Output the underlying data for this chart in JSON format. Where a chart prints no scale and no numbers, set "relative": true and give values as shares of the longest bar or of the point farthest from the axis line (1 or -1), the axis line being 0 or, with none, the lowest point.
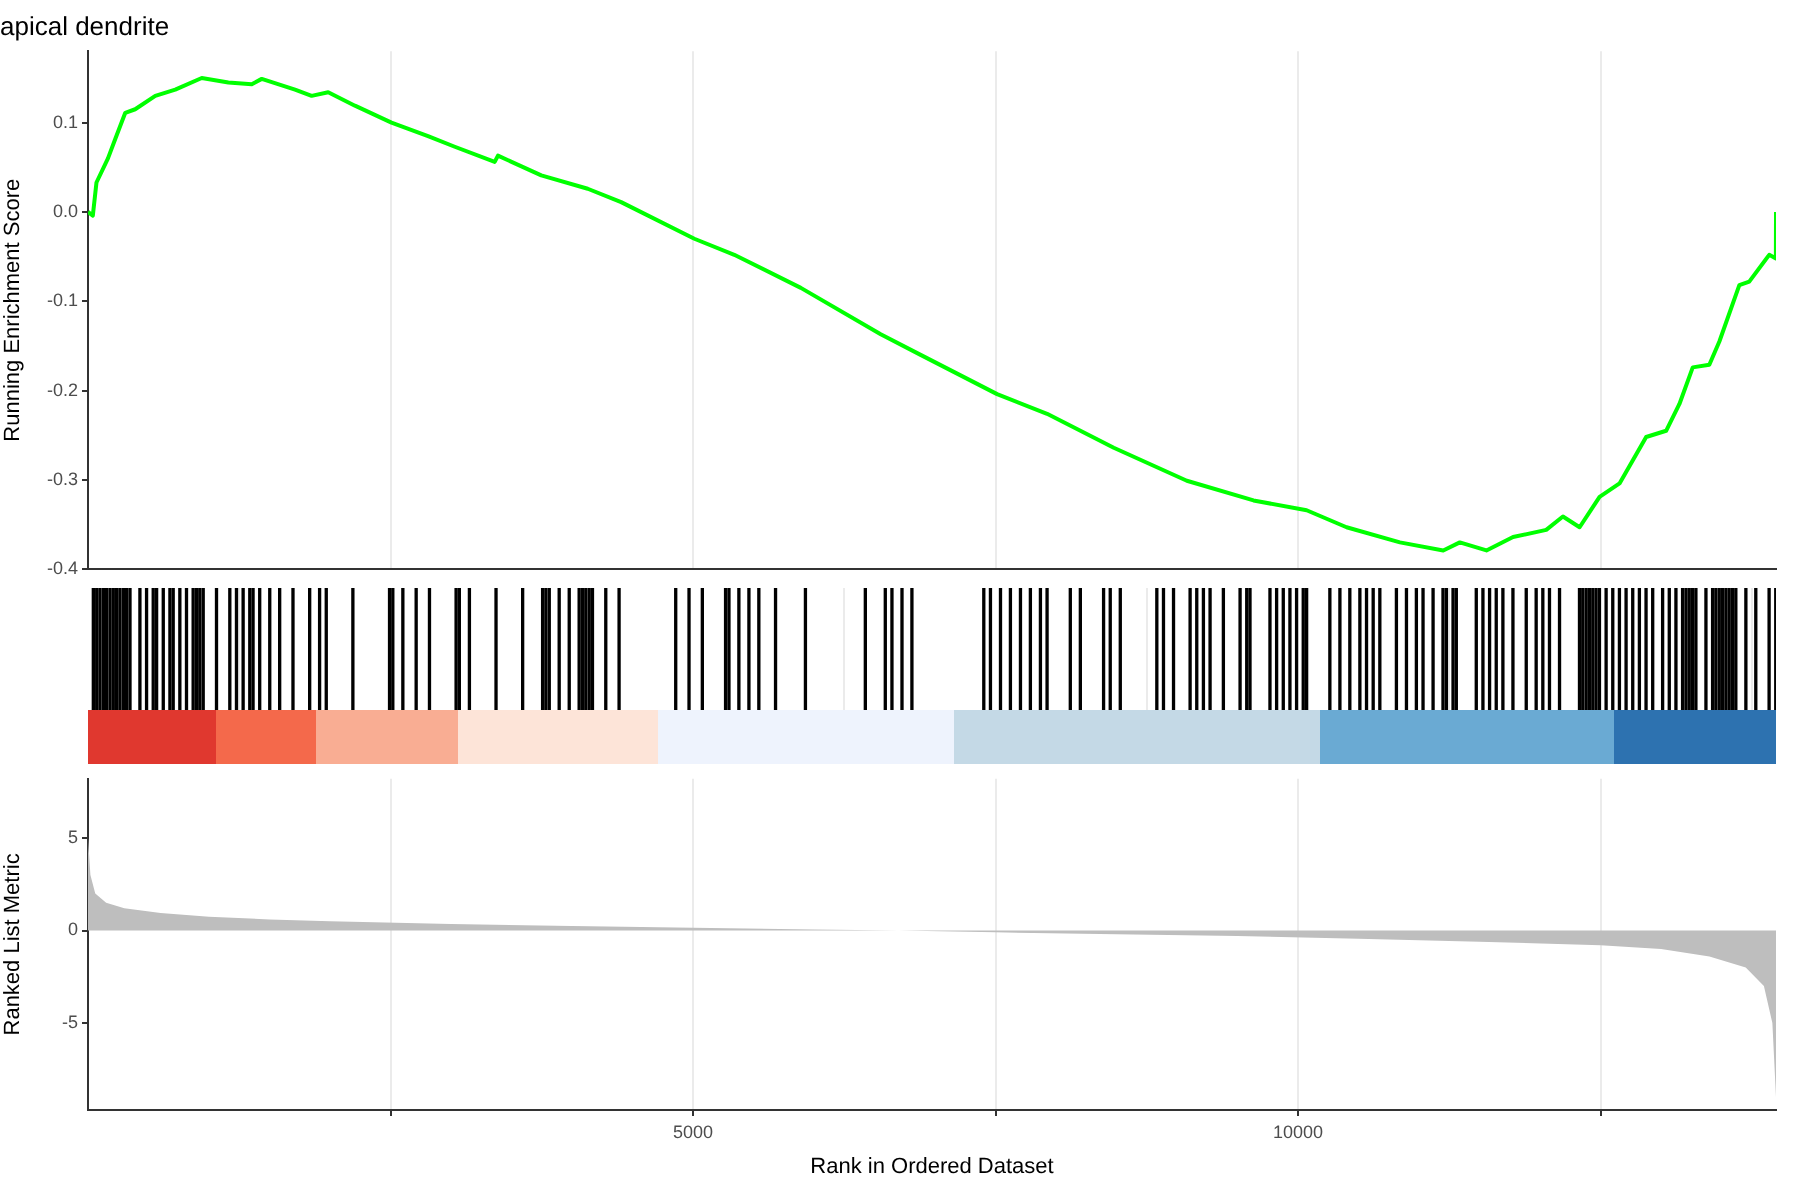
{
  "chart_data": [
    {
      "type": "line",
      "title": "apical dendrite",
      "ylabel": "Running Enrichment Score",
      "xlim": [
        0,
        13950
      ],
      "xticks": [
        {
          "value": 2500,
          "label": null
        },
        {
          "value": 5000,
          "label": null
        },
        {
          "value": 7500,
          "label": null
        },
        {
          "value": 10000,
          "label": null
        },
        {
          "value": 12500,
          "label": null
        }
      ],
      "ylim": [
        -0.4,
        0.18
      ],
      "yticks": [
        {
          "value": 0.1,
          "label": "0.1"
        },
        {
          "value": 0,
          "label": "0.0"
        },
        -0.1,
        -0.2,
        -0.3,
        -0.4
      ],
      "grid": "x",
      "tick_labels": "y",
      "marker": "none",
      "series": [
        {
          "color": "#00ff00",
          "x": [
            0,
            40,
            70,
            165,
            226,
            308,
            390,
            556,
            721,
            940,
            1160,
            1353,
            1436,
            1711,
            1848,
            1985,
            2206,
            2508,
            2810,
            3031,
            3361,
            3388,
            3746,
            4130,
            4406,
            5011,
            5341,
            5891,
            6551,
            6881,
            7513,
            7926,
            8477,
            9081,
            9632,
            10071,
            10401,
            10842,
            11200,
            11337,
            11557,
            11777,
            12051,
            12189,
            12327,
            12492,
            12657,
            12877,
            13042,
            13152,
            13262,
            13399,
            13482,
            13647,
            13729,
            13894,
            13949,
            13950
          ],
          "values": [
            0,
            -0.004,
            0.033,
            0.06,
            0.082,
            0.111,
            0.115,
            0.13,
            0.137,
            0.15,
            0.145,
            0.143,
            0.149,
            0.137,
            0.13,
            0.134,
            0.119,
            0.1,
            0.085,
            0.073,
            0.056,
            0.063,
            0.041,
            0.026,
            0.011,
            -0.03,
            -0.048,
            -0.085,
            -0.137,
            -0.16,
            -0.204,
            -0.226,
            -0.264,
            -0.301,
            -0.323,
            -0.334,
            -0.353,
            -0.37,
            -0.379,
            -0.37,
            -0.379,
            -0.364,
            -0.356,
            -0.341,
            -0.353,
            -0.319,
            -0.304,
            -0.252,
            -0.245,
            -0.215,
            -0.174,
            -0.171,
            -0.145,
            -0.082,
            -0.078,
            -0.048,
            -0.052,
            0
          ]
        }
      ]
    },
    {
      "type": "bar",
      "relative": true,
      "xlim": [
        0,
        13950
      ],
      "xticks": [
        {
          "value": 2500,
          "label": null
        },
        {
          "value": 5000,
          "label": null
        },
        {
          "value": 7500,
          "label": null
        },
        {
          "value": 10000,
          "label": null
        },
        {
          "value": 12500,
          "label": null
        }
      ],
      "grid": "x",
      "tick_labels": false,
      "series": [
        {
          "color": "#000000",
          "x": [
            44,
            72,
            99,
            127,
            154,
            182,
            209,
            237,
            264,
            292,
            319,
            347,
            429,
            484,
            539,
            567,
            622,
            677,
            704,
            759,
            814,
            869,
            897,
            924,
            952,
            1062,
            1172,
            1227,
            1282,
            1337,
            1364,
            1419,
            1502,
            1584,
            1694,
            1832,
            1914,
            1969,
            2189,
            2492,
            2519,
            2602,
            2712,
            2822,
            3042,
            3069,
            3152,
            3372,
            3592,
            3757,
            3784,
            3812,
            3894,
            3977,
            4059,
            4087,
            4114,
            4142,
            4169,
            4279,
            4389,
            4857,
            4967,
            5077,
            5269,
            5297,
            5379,
            5462,
            5544,
            5682,
            5929,
            6424,
            6589,
            6644,
            6727,
            6809,
            7403,
            7458,
            7541,
            7623,
            7706,
            7788,
            7871,
            7926,
            8118,
            8201,
            8393,
            8448,
            8531,
            8833,
            8888,
            8971,
            9108,
            9163,
            9218,
            9273,
            9383,
            9521,
            9576,
            9603,
            9768,
            9823,
            9878,
            9933,
            9988,
            10043,
            10071,
            10263,
            10346,
            10428,
            10511,
            10566,
            10621,
            10676,
            10813,
            10896,
            10978,
            11033,
            11116,
            11198,
            11226,
            11281,
            11308,
            11473,
            11528,
            11583,
            11638,
            11693,
            11776,
            11886,
            11968,
            12023,
            12078,
            12161,
            12326,
            12353,
            12381,
            12408,
            12436,
            12463,
            12491,
            12546,
            12601,
            12656,
            12711,
            12766,
            12821,
            12876,
            12931,
            13013,
            13068,
            13123,
            13178,
            13206,
            13233,
            13261,
            13288,
            13371,
            13426,
            13453,
            13481,
            13508,
            13536,
            13563,
            13591,
            13618,
            13701,
            13783,
            13893,
            13948
          ],
          "values": [
            1,
            1,
            1,
            1,
            1,
            1,
            1,
            1,
            1,
            1,
            1,
            1,
            1,
            1,
            1,
            1,
            1,
            1,
            1,
            1,
            1,
            1,
            1,
            1,
            1,
            1,
            1,
            1,
            1,
            1,
            1,
            1,
            1,
            1,
            1,
            1,
            1,
            1,
            1,
            1,
            1,
            1,
            1,
            1,
            1,
            1,
            1,
            1,
            1,
            1,
            1,
            1,
            1,
            1,
            1,
            1,
            1,
            1,
            1,
            1,
            1,
            1,
            1,
            1,
            1,
            1,
            1,
            1,
            1,
            1,
            1,
            1,
            1,
            1,
            1,
            1,
            1,
            1,
            1,
            1,
            1,
            1,
            1,
            1,
            1,
            1,
            1,
            1,
            1,
            1,
            1,
            1,
            1,
            1,
            1,
            1,
            1,
            1,
            1,
            1,
            1,
            1,
            1,
            1,
            1,
            1,
            1,
            1,
            1,
            1,
            1,
            1,
            1,
            1,
            1,
            1,
            1,
            1,
            1,
            1,
            1,
            1,
            1,
            1,
            1,
            1,
            1,
            1,
            1,
            1,
            1,
            1,
            1,
            1,
            1,
            1,
            1,
            1,
            1,
            1,
            1,
            1,
            1,
            1,
            1,
            1,
            1,
            1,
            1,
            1,
            1,
            1,
            1,
            1,
            1,
            1,
            1,
            1,
            1,
            1,
            1,
            1,
            1,
            1,
            1,
            1,
            1,
            1,
            1,
            1
          ]
        }
      ]
    },
    {
      "type": "area",
      "xlabel": "Rank in Ordered Dataset",
      "ylabel": "Ranked List Metric",
      "xlim": [
        0,
        13950
      ],
      "xticks": [
        {
          "value": 2500,
          "label": null
        },
        5000,
        {
          "value": 7500,
          "label": null
        },
        10000,
        {
          "value": 12500,
          "label": null
        }
      ],
      "ylim": [
        -9.7,
        8.2
      ],
      "yticks": [
        5,
        0,
        -5
      ],
      "grid": "x",
      "series": [
        {
          "color": "#bebebe",
          "x": [
            0,
            20,
            60,
            150,
            300,
            600,
            1000,
            1500,
            2000,
            3000,
            4000,
            5000,
            6000,
            6700,
            7500,
            8500,
            9500,
            10500,
            11500,
            12500,
            13000,
            13400,
            13700,
            13850,
            13920,
            13950
          ],
          "values": [
            5.0,
            3.0,
            2.0,
            1.5,
            1.2,
            0.95,
            0.75,
            0.6,
            0.5,
            0.35,
            0.25,
            0.15,
            0.05,
            0,
            -0.1,
            -0.2,
            -0.3,
            -0.45,
            -0.6,
            -0.8,
            -1.0,
            -1.4,
            -2.0,
            -3.0,
            -5.0,
            -9.0
          ]
        }
      ]
    }
  ]
}
